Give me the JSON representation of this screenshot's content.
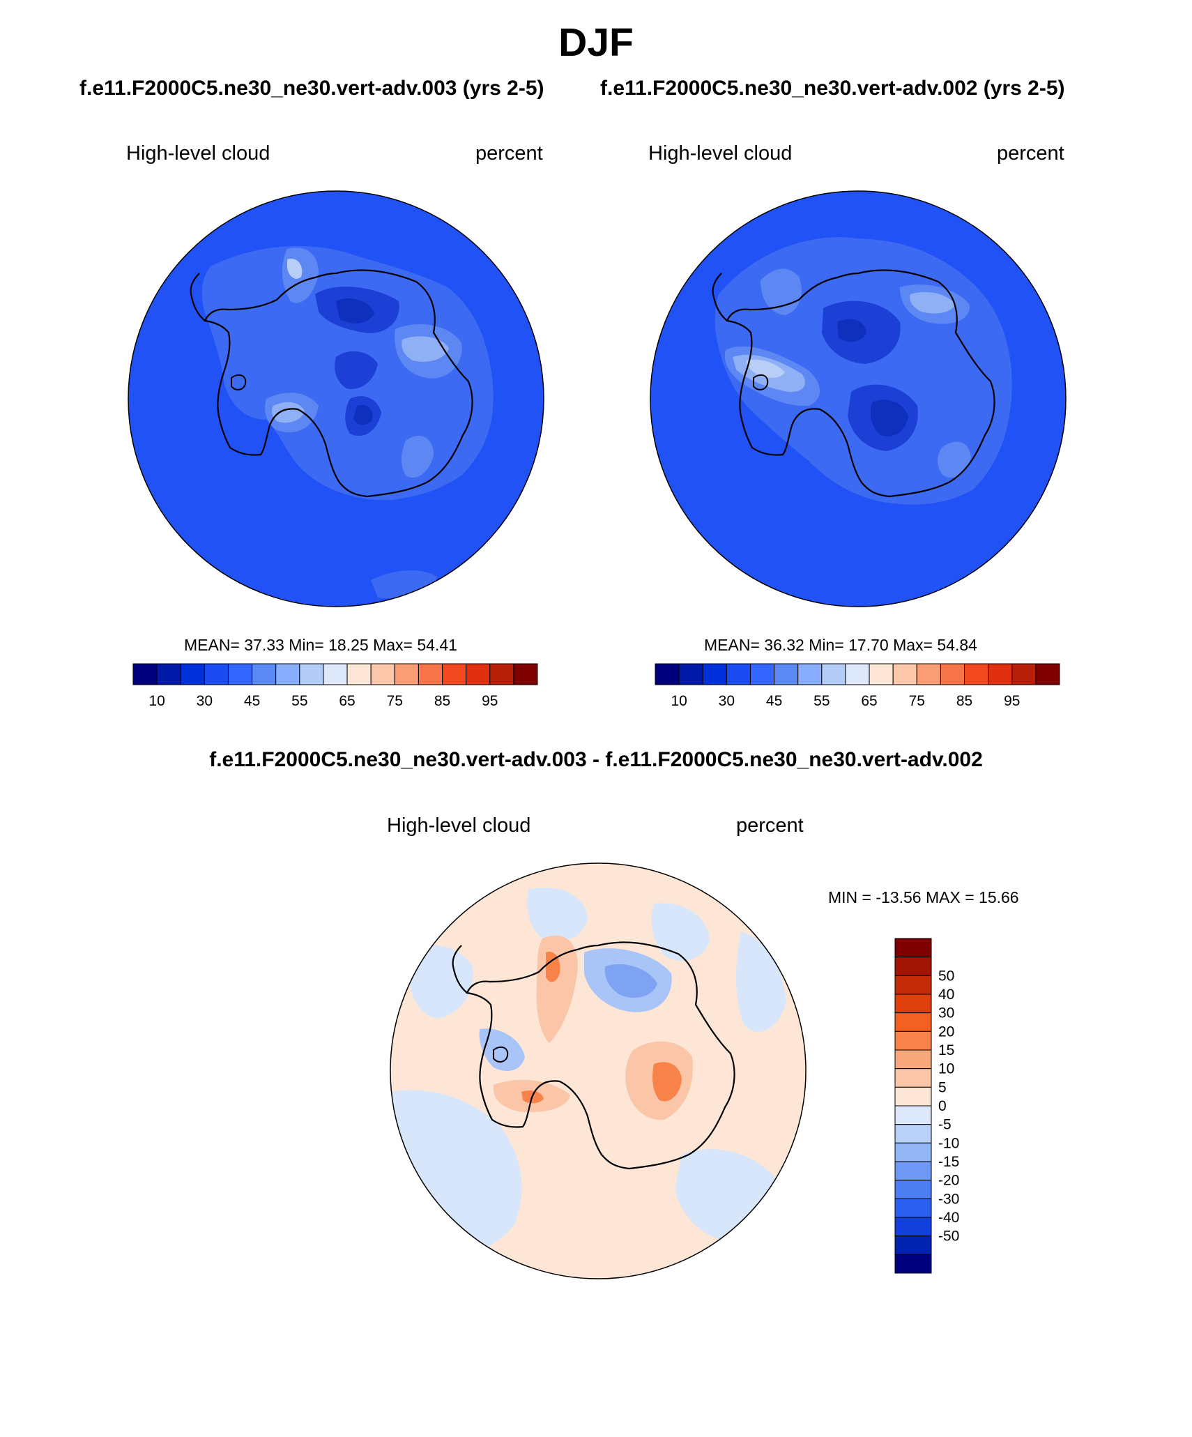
{
  "header": {
    "title": "DJF",
    "case_left": "f.e11.F2000C5.ne30_ne30.vert-adv.003 (yrs 2-5)",
    "case_right": "f.e11.F2000C5.ne30_ne30.vert-adv.002 (yrs 2-5)"
  },
  "panels": [
    {
      "variable": "High-level cloud",
      "units": "percent",
      "stats": {
        "mean_label": "MEAN=",
        "mean": "37.33",
        "min_label": "Min=",
        "min": "18.25",
        "max_label": "Max=",
        "max": "54.41"
      }
    },
    {
      "variable": "High-level cloud",
      "units": "percent",
      "stats": {
        "mean_label": "MEAN=",
        "mean": "36.32",
        "min_label": "Min=",
        "min": "17.70",
        "max_label": "Max=",
        "max": "54.84"
      }
    }
  ],
  "colorbar_main": {
    "colors": [
      "#00007f",
      "#0019a6",
      "#0030d9",
      "#1a4cf2",
      "#3366ff",
      "#5c8af5",
      "#8aaeff",
      "#b4ccf8",
      "#dde9fb",
      "#fde6d5",
      "#fcc7aa",
      "#fa9d75",
      "#f77348",
      "#f24a1e",
      "#e0300f",
      "#b81f08",
      "#7f0000"
    ],
    "tick_labels": [
      "10",
      "30",
      "45",
      "55",
      "65",
      "75",
      "85",
      "95"
    ]
  },
  "diff_panel": {
    "title": "f.e11.F2000C5.ne30_ne30.vert-adv.003 - f.e11.F2000C5.ne30_ne30.vert-adv.002",
    "variable": "High-level cloud",
    "units": "percent",
    "stats_text": "MIN = -13.56 MAX =  15.66"
  },
  "colorbar_diff": {
    "colors": [
      "#7f0000",
      "#a21504",
      "#c42b08",
      "#e0400d",
      "#f26122",
      "#f7834a",
      "#f9a77c",
      "#fbc6a8",
      "#fde6d5",
      "#dde9fb",
      "#b9d0f8",
      "#95b6f5",
      "#6e98f3",
      "#4d7ef2",
      "#2a5ff0",
      "#1240dc",
      "#0022b0",
      "#00007f"
    ],
    "tick_labels": [
      "50",
      "40",
      "30",
      "20",
      "15",
      "10",
      "5",
      "0",
      "-5",
      "-10",
      "-15",
      "-20",
      "-30",
      "-40",
      "-50"
    ]
  },
  "map_colors": {
    "ocean_base": "#2152f5",
    "level_45": "#3c6af2",
    "level_55": "#5d88f4",
    "level_65": "#8fb0f5",
    "level_75": "#b9cef6",
    "low_30": "#1c3fd6",
    "low_20": "#0f2fbd",
    "diff_pos": "#fde6d5",
    "diff_neg": "#d7e6fb",
    "diff_pos_mid": "#fbc6a8",
    "diff_pos_high": "#f7834a",
    "diff_neg_mid": "#a9c4f7",
    "diff_neg_high": "#7ea3f3",
    "coast": "#000000"
  }
}
